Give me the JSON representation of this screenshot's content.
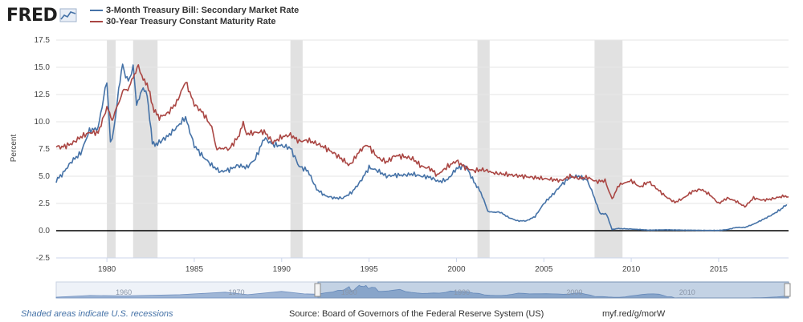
{
  "header": {
    "logo_text": "FRED",
    "logo_icon": "fred-chart-icon"
  },
  "chart_data": {
    "type": "line",
    "title": "",
    "xlabel": "",
    "ylabel": "Percent",
    "xlim": [
      1977.1,
      2019.0
    ],
    "ylim": [
      -2.5,
      17.5
    ],
    "yticks": [
      -2.5,
      0.0,
      2.5,
      5.0,
      7.5,
      10.0,
      12.5,
      15.0,
      17.5
    ],
    "ytick_labels": [
      "-2.5",
      "0.0",
      "2.5",
      "5.0",
      "7.5",
      "10.0",
      "12.5",
      "15.0",
      "17.5"
    ],
    "xticks": [
      1980,
      1985,
      1990,
      1995,
      2000,
      2005,
      2010,
      2015
    ],
    "xtick_labels": [
      "1980",
      "1985",
      "1990",
      "1995",
      "2000",
      "2005",
      "2010",
      "2015"
    ],
    "grid": true,
    "legend_position": "top-left",
    "recessions": [
      [
        1980.0,
        1980.5
      ],
      [
        1981.5,
        1982.9
      ],
      [
        1990.5,
        1991.2
      ],
      [
        2001.2,
        2001.9
      ],
      [
        2007.9,
        2009.5
      ]
    ],
    "series": [
      {
        "name": "3-Month Treasury Bill: Secondary Market Rate",
        "color": "#4572a7",
        "x": [
          1977.1,
          1977.5,
          1978.0,
          1978.5,
          1979.0,
          1979.5,
          1979.8,
          1980.0,
          1980.2,
          1980.4,
          1980.6,
          1980.9,
          1981.0,
          1981.3,
          1981.5,
          1981.7,
          1982.0,
          1982.3,
          1982.6,
          1982.9,
          1983.5,
          1984.0,
          1984.5,
          1985.0,
          1985.5,
          1986.0,
          1986.5,
          1987.0,
          1987.5,
          1988.0,
          1988.5,
          1989.0,
          1989.5,
          1990.0,
          1990.5,
          1991.0,
          1991.5,
          1992.0,
          1992.5,
          1993.0,
          1993.5,
          1994.0,
          1994.5,
          1995.0,
          1995.5,
          1996.0,
          1996.5,
          1997.0,
          1997.5,
          1998.0,
          1998.5,
          1999.0,
          1999.5,
          2000.0,
          2000.5,
          2001.0,
          2001.4,
          2001.8,
          2002.0,
          2002.5,
          2003.0,
          2003.5,
          2004.0,
          2004.5,
          2005.0,
          2005.5,
          2006.0,
          2006.5,
          2007.0,
          2007.5,
          2007.9,
          2008.2,
          2008.6,
          2008.9,
          2009.2,
          2010.0,
          2011.0,
          2012.0,
          2013.0,
          2014.0,
          2015.0,
          2015.5,
          2016.0,
          2016.5,
          2017.0,
          2017.5,
          2018.0,
          2018.5,
          2018.9
        ],
        "values": [
          4.6,
          5.3,
          6.4,
          7.1,
          9.2,
          9.4,
          12.1,
          13.8,
          8.1,
          9.2,
          12.0,
          15.5,
          14.4,
          13.8,
          15.2,
          11.5,
          13.0,
          12.6,
          8.0,
          8.0,
          8.7,
          9.5,
          10.4,
          7.8,
          6.8,
          6.0,
          5.4,
          5.6,
          6.0,
          5.8,
          6.6,
          8.5,
          7.9,
          7.8,
          7.6,
          5.9,
          5.5,
          3.8,
          3.2,
          3.0,
          3.0,
          3.5,
          4.5,
          5.8,
          5.5,
          5.0,
          5.1,
          5.1,
          5.2,
          5.0,
          4.9,
          4.5,
          4.7,
          5.7,
          6.0,
          4.5,
          3.5,
          1.8,
          1.7,
          1.7,
          1.2,
          0.9,
          0.9,
          1.3,
          2.5,
          3.3,
          4.2,
          4.9,
          5.0,
          4.6,
          3.0,
          1.6,
          1.5,
          0.1,
          0.2,
          0.15,
          0.05,
          0.08,
          0.05,
          0.03,
          0.02,
          0.1,
          0.3,
          0.3,
          0.6,
          1.0,
          1.4,
          1.9,
          2.4
        ]
      },
      {
        "name": "30-Year Treasury Constant Maturity Rate",
        "color": "#aa4643",
        "x": [
          1977.1,
          1977.5,
          1978.0,
          1978.5,
          1979.0,
          1979.5,
          1980.0,
          1980.3,
          1980.6,
          1980.9,
          1981.2,
          1981.5,
          1981.8,
          1982.0,
          1982.3,
          1982.7,
          1983.0,
          1983.5,
          1984.0,
          1984.5,
          1985.0,
          1985.5,
          1986.0,
          1986.3,
          1986.6,
          1987.0,
          1987.5,
          1987.8,
          1988.0,
          1988.5,
          1989.0,
          1989.5,
          1990.0,
          1990.5,
          1991.0,
          1991.5,
          1992.0,
          1992.5,
          1993.0,
          1993.5,
          1993.9,
          1994.5,
          1994.9,
          1995.5,
          1996.0,
          1996.5,
          1997.0,
          1997.5,
          1998.0,
          1998.5,
          1998.9,
          1999.5,
          2000.0,
          2000.5,
          2001.0,
          2001.5,
          2002.0,
          2002.1,
          2006.0,
          2006.5,
          2007.0,
          2007.5,
          2008.0,
          2008.5,
          2008.9,
          2009.3,
          2010.0,
          2010.5,
          2011.0,
          2011.5,
          2012.0,
          2012.5,
          2013.0,
          2013.5,
          2014.0,
          2014.5,
          2015.0,
          2015.5,
          2016.0,
          2016.5,
          2017.0,
          2017.5,
          2018.0,
          2018.5,
          2018.9,
          2019.0
        ],
        "values": [
          7.7,
          7.7,
          8.0,
          8.6,
          9.0,
          9.0,
          11.3,
          10.2,
          11.4,
          12.8,
          13.0,
          14.0,
          15.3,
          14.0,
          13.5,
          11.0,
          10.4,
          10.8,
          11.8,
          13.7,
          11.6,
          10.8,
          9.5,
          7.4,
          7.6,
          7.5,
          8.6,
          9.8,
          8.9,
          9.0,
          9.1,
          8.1,
          8.6,
          8.8,
          8.2,
          8.3,
          8.0,
          7.6,
          7.1,
          6.5,
          6.0,
          7.4,
          7.9,
          6.7,
          6.3,
          6.9,
          6.8,
          6.6,
          5.9,
          5.7,
          5.1,
          5.9,
          6.4,
          5.8,
          5.5,
          5.6,
          5.4,
          5.3,
          4.6,
          5.0,
          4.8,
          4.9,
          4.5,
          4.6,
          2.9,
          4.2,
          4.6,
          4.0,
          4.5,
          3.8,
          3.1,
          2.6,
          3.0,
          3.6,
          3.8,
          3.3,
          2.5,
          3.0,
          2.7,
          2.2,
          3.0,
          2.8,
          2.9,
          3.1,
          3.2,
          3.1
        ]
      }
    ]
  },
  "navigator": {
    "labels": [
      "1960",
      "1970",
      "1980",
      "1990",
      "2000",
      "2010"
    ]
  },
  "footer": {
    "note": "Shaded areas indicate U.S. recessions",
    "source": "Source: Board of Governors of the Federal Reserve System (US)",
    "link": "myf.red/g/morW"
  }
}
